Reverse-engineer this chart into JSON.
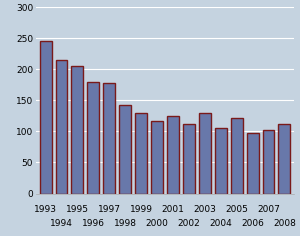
{
  "years": [
    1993,
    1994,
    1995,
    1996,
    1997,
    1998,
    1999,
    2000,
    2001,
    2002,
    2003,
    2004,
    2005,
    2006,
    2007,
    2008
  ],
  "values": [
    245,
    215,
    205,
    180,
    178,
    143,
    130,
    117,
    125,
    112,
    130,
    105,
    122,
    98,
    102,
    112
  ],
  "bar_fill_color": "#6878aa",
  "bar_edge_color": "#7a1a1a",
  "background_color": "#c5d3e0",
  "grid_color": "#ffffff",
  "ylim": [
    0,
    300
  ],
  "yticks": [
    0,
    50,
    100,
    150,
    200,
    250,
    300
  ],
  "tick_fontsize": 6.5,
  "bar_width": 0.75,
  "figsize": [
    3.0,
    2.36
  ],
  "dpi": 100
}
